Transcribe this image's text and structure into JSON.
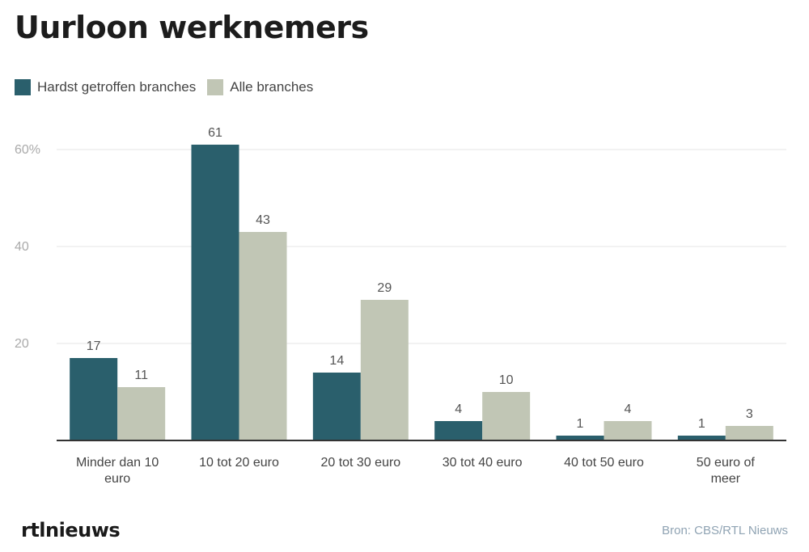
{
  "title": "Uurloon werknemers",
  "source": "Bron: CBS/RTL Nieuws",
  "logo_text": "rtlnieuws",
  "colors": {
    "series1": "#2a5f6c",
    "series2": "#c1c6b5",
    "grid": "#eeeeee",
    "axis": "#333333"
  },
  "chart_data": {
    "type": "bar",
    "title": "Uurloon werknemers",
    "categories": [
      [
        "Minder dan 10",
        "euro"
      ],
      [
        "10 tot 20 euro"
      ],
      [
        "20 tot 30 euro"
      ],
      [
        "30 tot 40 euro"
      ],
      [
        "40 tot 50 euro"
      ],
      [
        "50 euro of",
        "meer"
      ]
    ],
    "series": [
      {
        "name": "Hardst getroffen branches",
        "values": [
          17,
          61,
          14,
          4,
          1,
          1
        ]
      },
      {
        "name": "Alle branches",
        "values": [
          11,
          43,
          29,
          10,
          4,
          3
        ]
      }
    ],
    "yticks": [
      {
        "value": 20,
        "label": "20"
      },
      {
        "value": 40,
        "label": "40"
      },
      {
        "value": 60,
        "label": "60%"
      }
    ],
    "ylim": [
      0,
      60
    ],
    "grid": true,
    "legend_position": "top-left"
  }
}
